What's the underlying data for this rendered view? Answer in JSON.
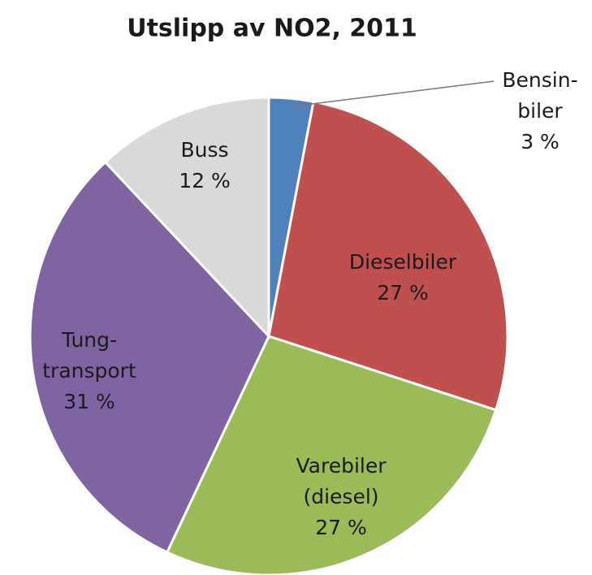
{
  "chart_data": {
    "type": "pie",
    "title": "Utslipp av NO2, 2011",
    "categories": [
      [
        "Bensin-",
        "biler"
      ],
      [
        "Dieselbiler"
      ],
      [
        "Varebiler",
        "(diesel)"
      ],
      [
        "Tung-",
        "transport"
      ],
      [
        "Buss"
      ]
    ],
    "values": [
      3,
      27,
      27,
      31,
      12
    ],
    "value_labels": [
      "3 %",
      "27 %",
      "27 %",
      "31 %",
      "12 %"
    ],
    "colors": [
      "#4f81bd",
      "#c0504d",
      "#9bbb59",
      "#8064a2",
      "#d9d9d9"
    ]
  }
}
